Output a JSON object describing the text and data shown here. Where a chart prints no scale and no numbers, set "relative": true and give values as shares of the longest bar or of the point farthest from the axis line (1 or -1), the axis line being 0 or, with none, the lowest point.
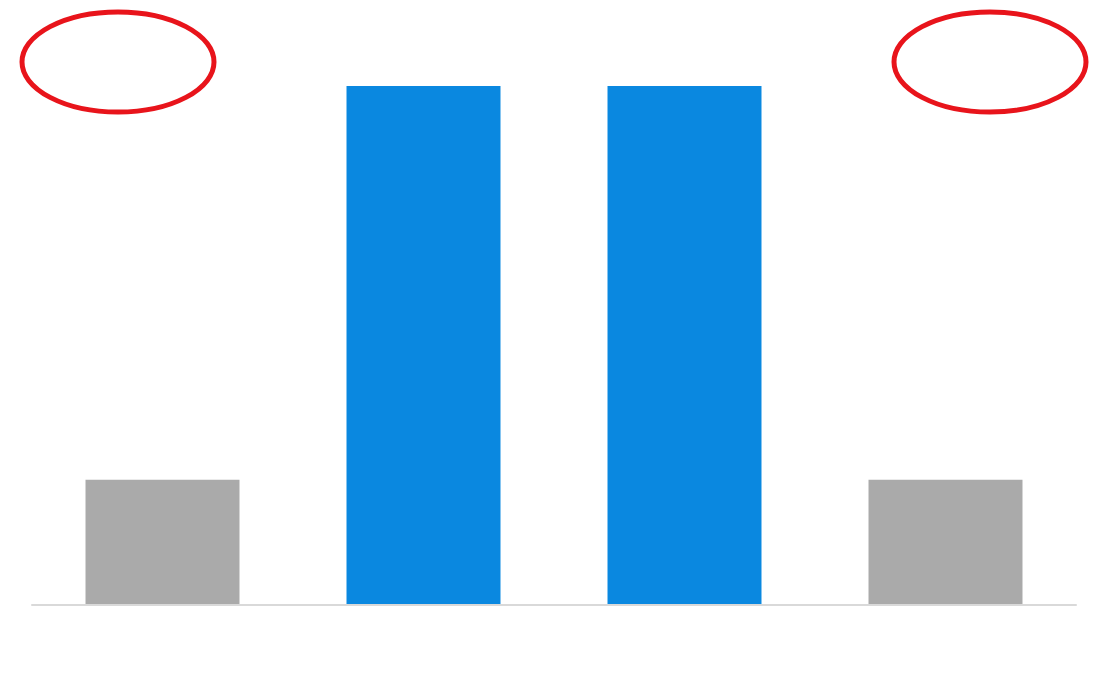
{
  "chart_data": {
    "type": "bar",
    "relative": true,
    "categories": [
      null,
      null,
      null,
      null
    ],
    "values": [
      0.24,
      1,
      1,
      0.24
    ],
    "colors": [
      "#aaaaaa",
      "#0a88e0",
      "#0a88e0",
      "#aaaaaa"
    ]
  }
}
